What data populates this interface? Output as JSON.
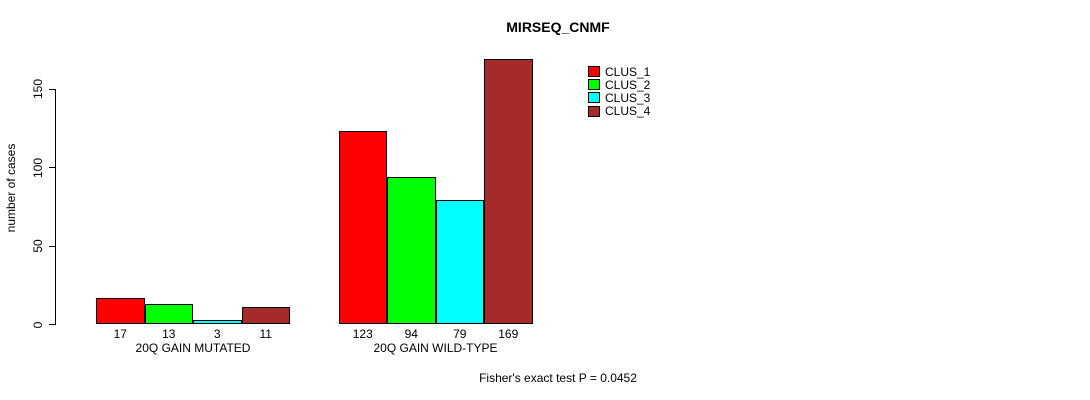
{
  "header": {
    "title": "MIRSEQ_CNMF"
  },
  "footer": {
    "annotation": "Fisher's exact test P = 0.0452"
  },
  "chart_data": {
    "type": "bar",
    "title": "MIRSEQ_CNMF",
    "xlabel": "",
    "ylabel": "number of cases",
    "ylim": [
      0,
      150
    ],
    "yticks": [
      0,
      50,
      100,
      150
    ],
    "grid": false,
    "legend_position": "top-right",
    "background": "#ffffff",
    "axis_color": "#000000",
    "categories": [
      "20Q GAIN MUTATED",
      "20Q GAIN WILD-TYPE"
    ],
    "series": [
      {
        "name": "CLUS_1",
        "color": "#ff0000",
        "values": [
          17,
          123
        ]
      },
      {
        "name": "CLUS_2",
        "color": "#00ff00",
        "values": [
          13,
          94
        ]
      },
      {
        "name": "CLUS_3",
        "color": "#00ffff",
        "values": [
          3,
          79
        ]
      },
      {
        "name": "CLUS_4",
        "color": "#a52a2a",
        "values": [
          11,
          169
        ]
      }
    ],
    "bar_value_labels_shown": true,
    "annotation": "Fisher's exact test P = 0.0452"
  }
}
